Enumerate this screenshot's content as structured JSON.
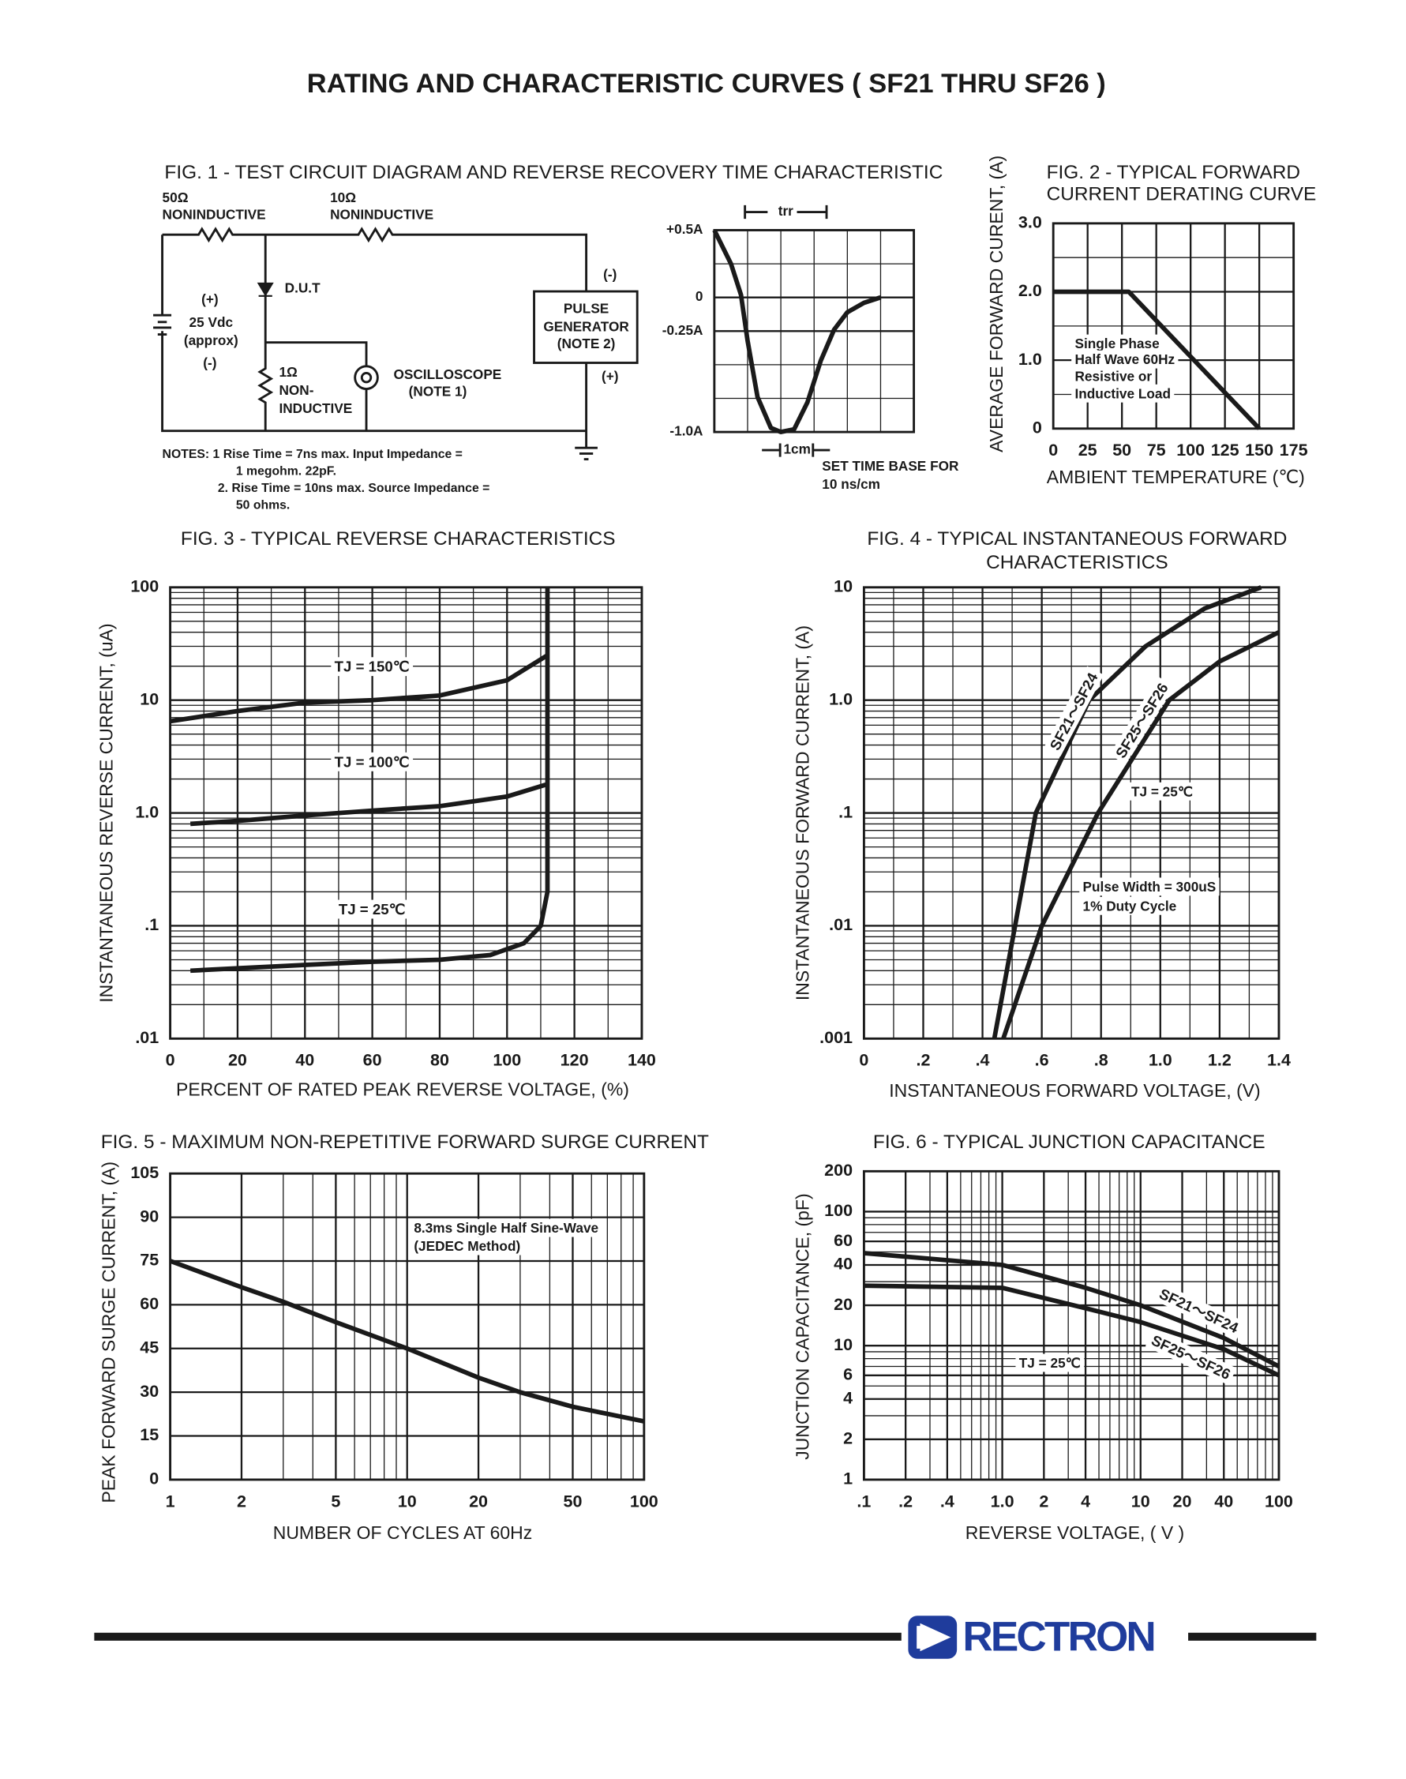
{
  "header": {
    "title": "RATING AND CHARACTERISTIC CURVES ( SF21 THRU SF26 )"
  },
  "circuit": {
    "labels": [
      "50Ω",
      "NONINDUCTIVE",
      "10Ω",
      "NONINDUCTIVE",
      "D.U.T",
      "(+)",
      "25 Vdc",
      "(approx)",
      "(-)",
      "1Ω",
      "NON-",
      "INDUCTIVE",
      "OSCILLOSCOPE",
      "(NOTE 1)",
      "PULSE",
      "GENERATOR",
      "(NOTE 2)",
      "(-)",
      "(+)"
    ],
    "notes": [
      "NOTES: 1  Rise Time = 7ns max. Input Impedance =",
      "1 megohm. 22pF.",
      "2. Rise Time = 10ns max. Source Impedance =",
      "50 ohms."
    ]
  },
  "chart_data": [
    {
      "type": "line",
      "title": [
        "FIG. 1 - TEST CIRCUIT DIAGRAM  AND REVERSE RECOVERY TIME CHARACTERISTIC"
      ],
      "xlim": [
        0,
        6
      ],
      "ylim": [
        -1.0,
        0.5
      ],
      "yticks": [
        {
          "value": 0.5,
          "label": "+0.5A"
        },
        0,
        {
          "value": -0.25,
          "label": "-0.25A"
        },
        {
          "value": -1.0,
          "label": "-1.0A"
        }
      ],
      "grid": true,
      "series": [
        {
          "color": "#1a1a1a",
          "x": [
            0,
            0.5,
            0.8,
            1.0,
            1.3,
            1.7,
            2.0,
            2.4,
            2.8,
            3.2,
            3.6,
            4.0,
            4.5,
            5.0
          ],
          "values": [
            0.5,
            0.25,
            0.02,
            -0.32,
            -0.74,
            -0.97,
            -1.0,
            -0.98,
            -0.78,
            -0.47,
            -0.24,
            -0.11,
            -0.04,
            0
          ]
        }
      ],
      "annotations": [
        "trr",
        "1cm",
        "SET TIME BASE FOR",
        "10 ns/cm"
      ]
    },
    {
      "type": "line",
      "title": [
        "FIG. 2 - TYPICAL FORWARD",
        "CURRENT DERATING CURVE"
      ],
      "xlabel": "AMBIENT TEMPERATURE (℃)",
      "ylabel": "AVERAGE FORWARD CURENT, (A)",
      "xlim": [
        0,
        175
      ],
      "ylim": [
        0,
        3
      ],
      "xticks": [
        0,
        25,
        50,
        75,
        100,
        125,
        150,
        175
      ],
      "yticks": [
        0,
        {
          "value": 1,
          "label": "1.0"
        },
        {
          "value": 2,
          "label": "2.0"
        },
        {
          "value": 3,
          "label": "3.0"
        }
      ],
      "grid": true,
      "series": [
        {
          "color": "#1a1a1a",
          "x": [
            0,
            55,
            150
          ],
          "values": [
            2.0,
            2.0,
            0
          ]
        }
      ],
      "annotations": [
        "Single Phase",
        "Half Wave 60Hz",
        "Resistive or",
        "Inductive Load"
      ]
    },
    {
      "type": "line",
      "title": [
        "FIG. 3 - TYPICAL REVERSE CHARACTERISTICS"
      ],
      "xlabel": "PERCENT OF RATED PEAK REVERSE VOLTAGE, (%)",
      "ylabel": "INSTANTANEOUS REVERSE CURRENT, (uA)",
      "xlim": [
        0,
        140
      ],
      "ylim": [
        0.01,
        100
      ],
      "yscale": "log",
      "xticks": [
        0,
        20,
        40,
        60,
        80,
        100,
        120,
        140
      ],
      "yticks": [
        {
          "value": 0.01,
          "label": ".01"
        },
        {
          "value": 0.1,
          "label": ".1"
        },
        {
          "value": 1,
          "label": "1.0"
        },
        10,
        100
      ],
      "grid": true,
      "series": [
        {
          "name": "TJ = 150℃",
          "color": "#1a1a1a",
          "x": [
            0,
            20,
            40,
            60,
            80,
            100,
            112
          ],
          "values": [
            6.5,
            8,
            9.5,
            10,
            11,
            15,
            25
          ]
        },
        {
          "name": "TJ = 100℃",
          "color": "#1a1a1a",
          "x": [
            6,
            20,
            40,
            60,
            80,
            100,
            112
          ],
          "values": [
            0.8,
            0.85,
            0.95,
            1.05,
            1.15,
            1.4,
            1.8
          ]
        },
        {
          "name": "TJ = 25℃",
          "color": "#1a1a1a",
          "x": [
            6,
            20,
            40,
            60,
            80,
            95,
            105,
            110,
            112,
            112
          ],
          "values": [
            0.04,
            0.042,
            0.045,
            0.048,
            0.05,
            0.055,
            0.07,
            0.1,
            0.2,
            100
          ]
        }
      ]
    },
    {
      "type": "line",
      "title": [
        "FIG. 4 - TYPICAL INSTANTANEOUS FORWARD",
        "CHARACTERISTICS"
      ],
      "xlabel": "INSTANTANEOUS FORWARD VOLTAGE, (V)",
      "ylabel": "INSTANTANEOUS FORWARD CURRENT, (A)",
      "xlim": [
        0,
        1.4
      ],
      "ylim": [
        0.001,
        10
      ],
      "yscale": "log",
      "xticks": [
        0,
        {
          "value": 0.2,
          "label": ".2"
        },
        {
          "value": 0.4,
          "label": ".4"
        },
        {
          "value": 0.6,
          "label": ".6"
        },
        {
          "value": 0.8,
          "label": ".8"
        },
        {
          "value": 1,
          "label": "1.0"
        },
        1.2,
        1.4
      ],
      "yticks": [
        {
          "value": 0.001,
          "label": ".001"
        },
        {
          "value": 0.01,
          "label": ".01"
        },
        {
          "value": 0.1,
          "label": ".1"
        },
        {
          "value": 1,
          "label": "1.0"
        },
        10
      ],
      "grid": true,
      "series": [
        {
          "name": "SF21～SF24",
          "color": "#1a1a1a",
          "x": [
            0.44,
            0.51,
            0.58,
            0.76,
            0.95,
            1.15,
            1.34
          ],
          "values": [
            0.001,
            0.01,
            0.1,
            1,
            3,
            6.5,
            10
          ]
        },
        {
          "name": "SF25～SF26",
          "color": "#1a1a1a",
          "x": [
            0.47,
            0.6,
            0.79,
            1.03,
            1.2,
            1.4
          ],
          "values": [
            0.001,
            0.01,
            0.1,
            1,
            2.2,
            4
          ]
        }
      ],
      "annotations": [
        "TJ = 25℃",
        "Pulse Width = 300uS",
        "1% Duty Cycle"
      ]
    },
    {
      "type": "line",
      "title": [
        "FIG. 5 - MAXIMUM NON-REPETITIVE FORWARD SURGE CURRENT"
      ],
      "xlabel": "NUMBER OF CYCLES AT 60Hz",
      "ylabel": "PEAK FORWARD SURGE CURRENT, (A)",
      "xlim": [
        1,
        100
      ],
      "ylim": [
        0,
        105
      ],
      "xscale": "log",
      "xticks": [
        1,
        2,
        5,
        10,
        20,
        50,
        100
      ],
      "yticks": [
        0,
        15,
        30,
        45,
        60,
        75,
        90,
        105
      ],
      "grid": true,
      "series": [
        {
          "color": "#1a1a1a",
          "x": [
            1,
            2,
            3,
            5,
            10,
            20,
            30,
            50,
            100
          ],
          "values": [
            75,
            66,
            61,
            54,
            45,
            35,
            30,
            25,
            20
          ]
        }
      ],
      "annotations": [
        "8.3ms Single Half Sine-Wave",
        "(JEDEC Method)"
      ]
    },
    {
      "type": "line",
      "title": [
        "FIG. 6 - TYPICAL JUNCTION CAPACITANCE"
      ],
      "xlabel": "REVERSE VOLTAGE, ( V )",
      "ylabel": "JUNCTION CAPACITANCE, (pF)",
      "xlim": [
        0.1,
        100
      ],
      "ylim": [
        1,
        200
      ],
      "xscale": "log",
      "yscale": "log",
      "xticks": [
        {
          "value": 0.1,
          "label": ".1"
        },
        {
          "value": 0.2,
          "label": ".2"
        },
        {
          "value": 0.4,
          "label": ".4"
        },
        {
          "value": 1,
          "label": "1.0"
        },
        2,
        4,
        10,
        20,
        40,
        100
      ],
      "yticks": [
        1,
        2,
        4,
        6,
        10,
        20,
        40,
        60,
        100,
        200
      ],
      "grid": true,
      "series": [
        {
          "name": "SF21～SF24",
          "color": "#1a1a1a",
          "x": [
            0.1,
            1,
            4,
            10,
            40,
            100
          ],
          "values": [
            49,
            40,
            27,
            20,
            11.4,
            7
          ]
        },
        {
          "name": "SF25～SF26",
          "color": "#1a1a1a",
          "x": [
            0.1,
            1,
            4,
            10,
            40,
            100
          ],
          "values": [
            28,
            27,
            19,
            15,
            9.4,
            6
          ]
        }
      ],
      "annotations": [
        "TJ = 25℃"
      ]
    }
  ],
  "footer": {
    "brand": "RECTRON"
  }
}
